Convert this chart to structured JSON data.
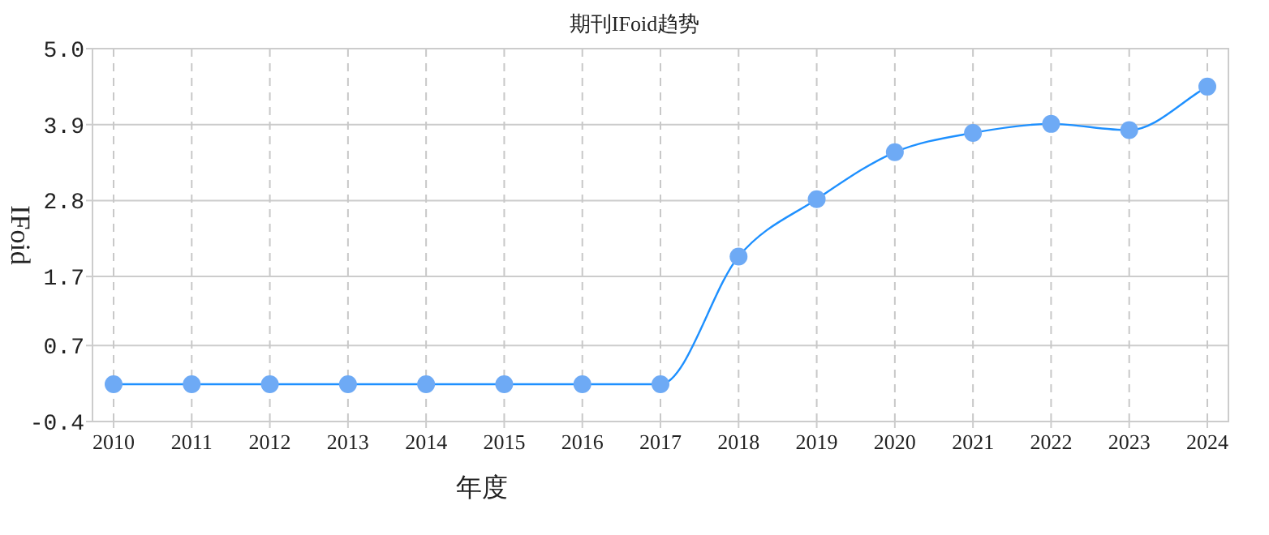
{
  "chart_data": {
    "type": "line",
    "title": "期刊IFoid趋势",
    "xlabel": "年度",
    "ylabel": "IFoid",
    "categories": [
      "2010",
      "2011",
      "2012",
      "2013",
      "2014",
      "2015",
      "2016",
      "2017",
      "2018",
      "2019",
      "2020",
      "2021",
      "2022",
      "2023",
      "2024"
    ],
    "series": [
      {
        "color": "#1e90ff",
        "values": [
          0.14,
          0.14,
          0.14,
          0.14,
          0.14,
          0.14,
          0.14,
          0.14,
          1.99,
          2.82,
          3.5,
          3.78,
          3.91,
          3.82,
          4.45
        ]
      }
    ],
    "marker": "circle",
    "line_style": "solid",
    "grid": true,
    "ylim": [
      -0.4,
      5.0
    ],
    "yticks": [
      -0.4,
      0.7,
      1.7,
      2.8,
      3.9,
      {
        "value": 5,
        "label": "5.0"
      }
    ]
  }
}
